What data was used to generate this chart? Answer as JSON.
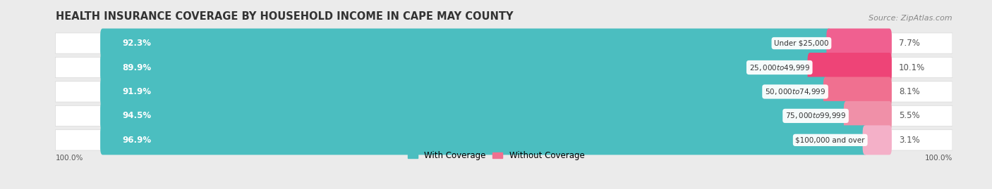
{
  "title": "HEALTH INSURANCE COVERAGE BY HOUSEHOLD INCOME IN CAPE MAY COUNTY",
  "source": "Source: ZipAtlas.com",
  "categories": [
    "Under $25,000",
    "$25,000 to $49,999",
    "$50,000 to $74,999",
    "$75,000 to $99,999",
    "$100,000 and over"
  ],
  "with_coverage": [
    92.3,
    89.9,
    91.9,
    94.5,
    96.9
  ],
  "without_coverage": [
    7.7,
    10.1,
    8.1,
    5.5,
    3.1
  ],
  "color_coverage": "#4BBEC0",
  "color_without": "#F07090",
  "color_without_row2": "#EE5577",
  "color_without_row5": "#F4A0B8",
  "background_color": "#ebebeb",
  "row_bg_color": "#ffffff",
  "row_border_color": "#d8d8d8",
  "title_fontsize": 10.5,
  "label_fontsize": 8.5,
  "source_fontsize": 8,
  "legend_fontsize": 8.5,
  "wc_label_color": "#ffffff",
  "woc_label_color": "#555555",
  "cat_label_color": "#333333"
}
